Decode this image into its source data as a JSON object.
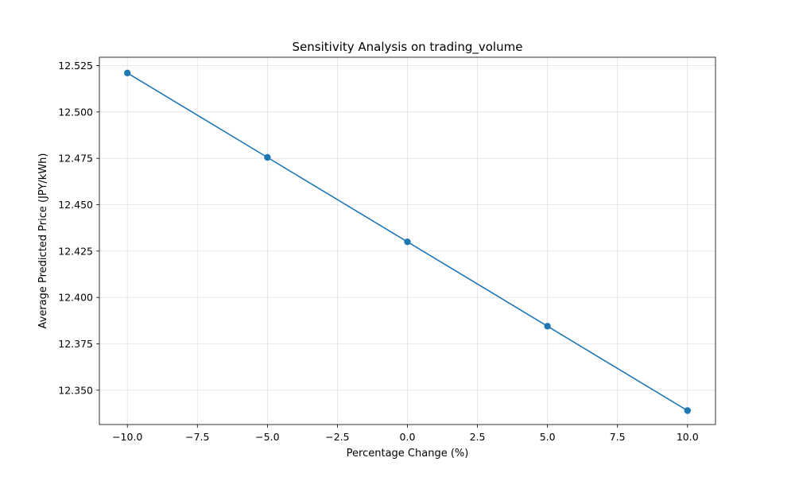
{
  "chart_data": {
    "type": "line",
    "title": "Sensitivity Analysis on trading_volume",
    "xlabel": "Percentage Change (%)",
    "ylabel": "Average Predicted Price (JPY/kWh)",
    "xlim": [
      -11,
      11
    ],
    "ylim": [
      12.3315,
      12.5295
    ],
    "x_ticks": [
      -10.0,
      -7.5,
      -5.0,
      -2.5,
      0.0,
      2.5,
      5.0,
      7.5,
      10.0
    ],
    "x_tick_labels": [
      "−10.0",
      "−7.5",
      "−5.0",
      "−2.5",
      "0.0",
      "2.5",
      "5.0",
      "7.5",
      "10.0"
    ],
    "y_ticks": [
      12.35,
      12.375,
      12.4,
      12.425,
      12.45,
      12.475,
      12.5,
      12.525
    ],
    "y_tick_labels": [
      "12.350",
      "12.375",
      "12.400",
      "12.425",
      "12.450",
      "12.475",
      "12.500",
      "12.525"
    ],
    "grid": true,
    "series": [
      {
        "x": [
          -10,
          -5,
          0,
          5,
          10
        ],
        "values": [
          12.521,
          12.4755,
          12.43,
          12.3845,
          12.339
        ],
        "color": "#1f77b4",
        "marker": "circle"
      }
    ]
  }
}
